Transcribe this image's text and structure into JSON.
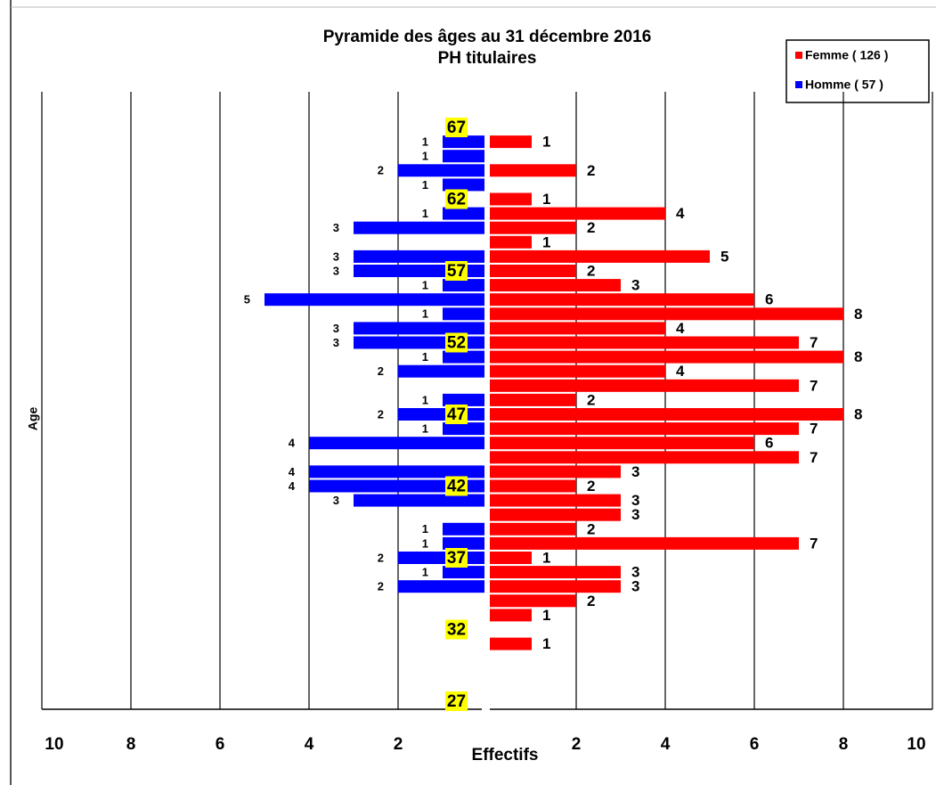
{
  "chart_data": {
    "type": "pyramid",
    "title": "Pyramide des âges au 31 décembre 2016",
    "subtitle": "PH titulaires",
    "y_label": "Age",
    "x_label": "Effectifs",
    "categories": [
      "27",
      null,
      null,
      null,
      null,
      "32",
      null,
      null,
      null,
      null,
      "37",
      null,
      null,
      null,
      null,
      "42",
      null,
      null,
      null,
      null,
      "47",
      null,
      null,
      null,
      null,
      "52",
      null,
      null,
      null,
      null,
      "57",
      null,
      null,
      null,
      null,
      "62",
      null,
      null,
      null,
      null,
      "67"
    ],
    "series": [
      {
        "name": "Femme ( 126 )",
        "color": "#ff0000",
        "side": "right",
        "values": [
          null,
          null,
          null,
          null,
          1,
          null,
          1,
          2,
          3,
          3,
          1,
          7,
          2,
          3,
          3,
          2,
          3,
          7,
          6,
          7,
          8,
          2,
          7,
          4,
          8,
          7,
          4,
          8,
          6,
          3,
          2,
          5,
          1,
          2,
          4,
          1,
          null,
          2,
          null,
          1,
          null
        ]
      },
      {
        "name": "Homme ( 57 )",
        "color": "#0000ff",
        "side": "left",
        "values": [
          null,
          null,
          null,
          null,
          null,
          null,
          null,
          null,
          2,
          1,
          2,
          1,
          1,
          null,
          3,
          4,
          4,
          null,
          4,
          1,
          2,
          1,
          null,
          2,
          1,
          3,
          3,
          1,
          5,
          1,
          3,
          3,
          null,
          3,
          1,
          null,
          1,
          2,
          1,
          1,
          null
        ]
      }
    ],
    "xlim": [
      0,
      10
    ],
    "xticks": [
      2,
      4,
      6,
      8,
      10
    ],
    "grid": true,
    "legend": "top-right"
  }
}
